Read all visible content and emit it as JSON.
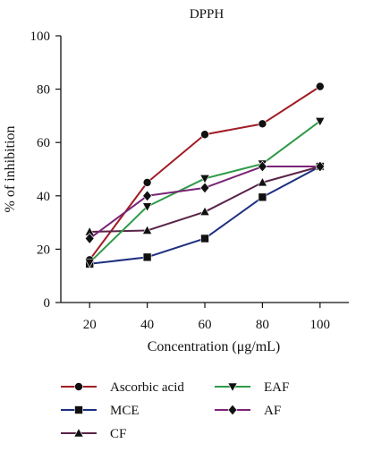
{
  "chart_data": {
    "type": "line",
    "title": "DPPH",
    "xlabel": "Concentration (μg/mL)",
    "ylabel": "% of inhibition",
    "x": [
      20,
      40,
      60,
      80,
      100
    ],
    "x_tick_labels": [
      "20",
      "40",
      "60",
      "80",
      "100"
    ],
    "y_tick_labels": [
      "0",
      "20",
      "40",
      "60",
      "80",
      "100"
    ],
    "xlim": [
      10,
      110
    ],
    "ylim": [
      0,
      100
    ],
    "grid": false,
    "legend_position": "bottom",
    "series": [
      {
        "name": "Ascorbic acid",
        "values": [
          16,
          45,
          63,
          67,
          81
        ],
        "color": "#a01c24",
        "marker": "circle"
      },
      {
        "name": "MCE",
        "values": [
          14.5,
          17,
          24,
          39.5,
          51
        ],
        "color": "#1c2f80",
        "marker": "square"
      },
      {
        "name": "CF",
        "values": [
          26.5,
          27,
          34,
          45,
          51
        ],
        "color": "#5a2448",
        "marker": "triangle-up"
      },
      {
        "name": "EAF",
        "values": [
          15,
          36,
          46.5,
          52,
          68
        ],
        "color": "#2e9a48",
        "marker": "triangle-down"
      },
      {
        "name": "AF",
        "values": [
          24,
          40,
          43,
          51,
          51
        ],
        "color": "#7a2476",
        "marker": "diamond"
      }
    ]
  }
}
